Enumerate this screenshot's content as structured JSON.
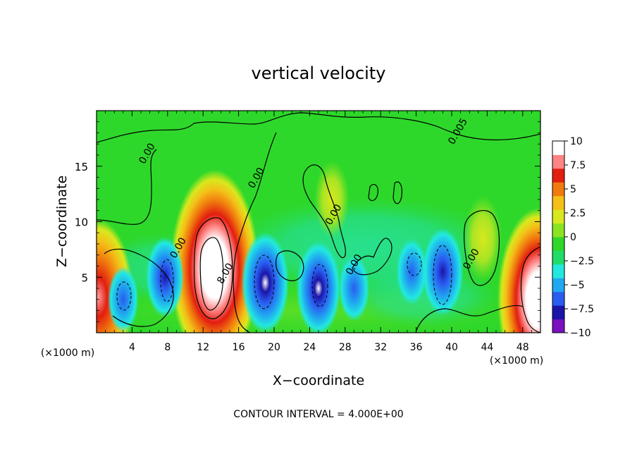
{
  "chart_data": {
    "type": "heatmap",
    "title": "vertical velocity",
    "xlabel": "X−coordinate",
    "ylabel": "Z−coordinate",
    "x_unit_label": "(×1000 m)",
    "xlim": [
      0,
      50
    ],
    "ylim": [
      0,
      20
    ],
    "x_ticks": [
      4,
      8,
      12,
      16,
      20,
      24,
      28,
      32,
      36,
      40,
      44,
      48
    ],
    "y_ticks": [
      5,
      10,
      15
    ],
    "footer": "CONTOUR INTERVAL = 4.000E+00",
    "colorbar": {
      "range": [
        -10,
        10
      ],
      "ticks": [
        "10",
        "7.5",
        "5",
        "2.5",
        "0",
        "−2.5",
        "−5",
        "−7.5",
        "−10"
      ],
      "colors": [
        "#7a10c0",
        "#1a14a8",
        "#2a5cf0",
        "#20a8f0",
        "#22e8e0",
        "#22dc6a",
        "#2ed82a",
        "#8ae422",
        "#d8e81e",
        "#f4c018",
        "#f07a0e",
        "#e21e10",
        "#ff8484",
        "#ffffff"
      ]
    },
    "features": [
      {
        "kind": "updraft",
        "x": 13.3,
        "z": 5.8,
        "peak": 10
      },
      {
        "kind": "updraft",
        "x": 0.2,
        "z": 3.2,
        "peak": 7
      },
      {
        "kind": "updraft",
        "x": 49.8,
        "z": 3.0,
        "peak": 9
      },
      {
        "kind": "updraft",
        "x": 43.5,
        "z": 8.5,
        "peak": 2
      },
      {
        "kind": "updraft",
        "x": 26.5,
        "z": 12.0,
        "peak": 1.5
      },
      {
        "kind": "downdraft",
        "x": 19.0,
        "z": 4.5,
        "peak": -10
      },
      {
        "kind": "downdraft",
        "x": 25.0,
        "z": 4.0,
        "peak": -9
      },
      {
        "kind": "downdraft",
        "x": 39.0,
        "z": 5.5,
        "peak": -8
      },
      {
        "kind": "downdraft",
        "x": 7.7,
        "z": 5.0,
        "peak": -7
      },
      {
        "kind": "downdraft",
        "x": 3.0,
        "z": 3.0,
        "peak": -5
      },
      {
        "kind": "downdraft",
        "x": 35.5,
        "z": 5.5,
        "peak": -5
      },
      {
        "kind": "downdraft",
        "x": 29.0,
        "z": 4.0,
        "peak": -5
      }
    ],
    "contour_labels": [
      {
        "text": "0.00",
        "x": 6.0,
        "z": 16.0
      },
      {
        "text": "0.00",
        "x": 18.3,
        "z": 13.8
      },
      {
        "text": "0.00",
        "x": 9.5,
        "z": 7.5
      },
      {
        "text": "8.00",
        "x": 14.8,
        "z": 5.2
      },
      {
        "text": "0.00",
        "x": 27.0,
        "z": 10.5
      },
      {
        "text": "0.00",
        "x": 29.3,
        "z": 6.0
      },
      {
        "text": "0.00",
        "x": 42.5,
        "z": 6.5
      },
      {
        "text": "0.005",
        "x": 41.0,
        "z": 18.0
      }
    ]
  }
}
